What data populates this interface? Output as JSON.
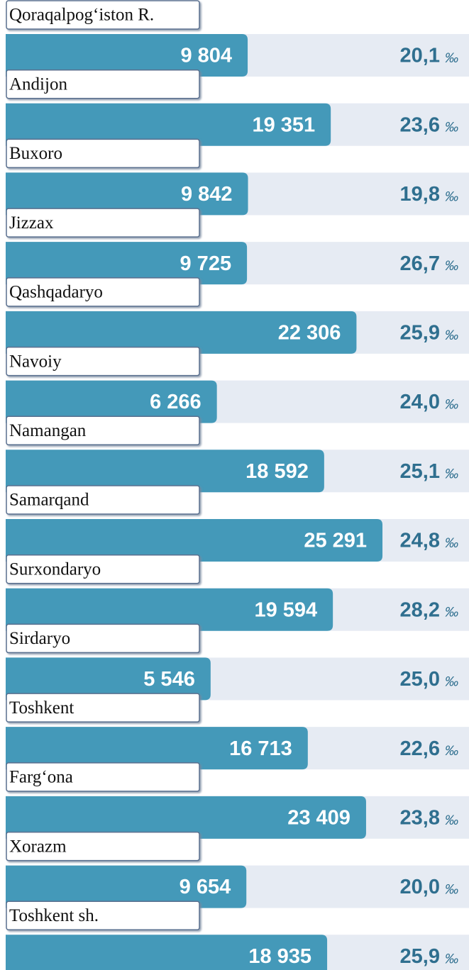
{
  "chart_data": {
    "type": "barh",
    "categories": [
      "Qoraqalpog‘iston R.",
      "Andijon",
      "Buxoro",
      "Jizzax",
      "Qashqadaryo",
      "Navoiy",
      "Namangan",
      "Samarqand",
      "Surxondaryo",
      "Sirdaryo",
      "Toshkent",
      "Farg‘ona",
      "Xorazm",
      "Toshkent sh."
    ],
    "values": [
      9804,
      19351,
      9842,
      9725,
      22306,
      6266,
      18592,
      25291,
      19594,
      5546,
      16713,
      23409,
      9654,
      18935
    ],
    "value_labels": [
      "9 804",
      "19 351",
      "9 842",
      "9 725",
      "22 306",
      "6 266",
      "18 592",
      "25 291",
      "19 594",
      "5 546",
      "16 713",
      "23 409",
      "9 654",
      "18 935"
    ],
    "rates": [
      20.1,
      23.6,
      19.8,
      26.7,
      25.9,
      24.0,
      25.1,
      24.8,
      28.2,
      25.0,
      22.6,
      23.8,
      20.0,
      25.9
    ],
    "rate_labels": [
      "20,1",
      "23,6",
      "19,8",
      "26,7",
      "25,9",
      "24,0",
      "25,1",
      "24,8",
      "28,2",
      "25,0",
      "22,6",
      "23,8",
      "20,0",
      "25,9"
    ],
    "rate_unit": "‰",
    "color": "#4499b9",
    "xlim": [
      -18000,
      27000
    ]
  }
}
